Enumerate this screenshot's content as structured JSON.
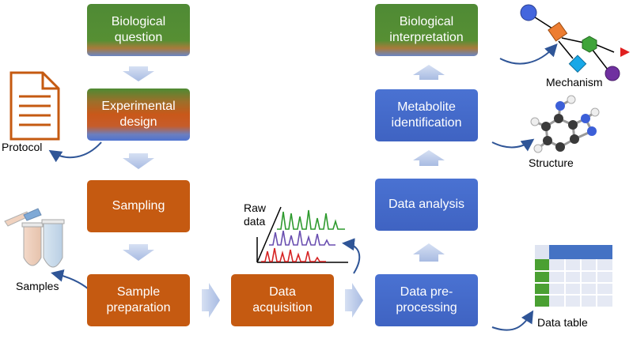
{
  "steps": {
    "biological_question": "Biological\nquestion",
    "experimental_design": "Experimental\ndesign",
    "sampling": "Sampling",
    "sample_preparation": "Sample\npreparation",
    "data_acquisition": "Data\nacquisition",
    "data_preprocessing": "Data pre-\nprocessing",
    "data_analysis": "Data analysis",
    "metabolite_identification": "Metabolite\nidentification",
    "biological_interpretation": "Biological\ninterpretation"
  },
  "outputs": {
    "protocol": "Protocol",
    "samples": "Samples",
    "raw_data": "Raw\ndata",
    "data_table": "Data table",
    "structure": "Structure",
    "mechanism": "Mechanism"
  },
  "icons": {
    "protocol": "document-icon",
    "samples": "sample-tubes-icon",
    "raw_data": "spectra-icon",
    "data_table": "table-icon",
    "structure": "molecule-icon",
    "mechanism": "network-icon"
  },
  "colors": {
    "step_orange": "#c55a11",
    "step_blue": "#4a72d2",
    "step_green": "#568f33",
    "arrow": "#b4c4e6",
    "connector": "#2f5597"
  }
}
